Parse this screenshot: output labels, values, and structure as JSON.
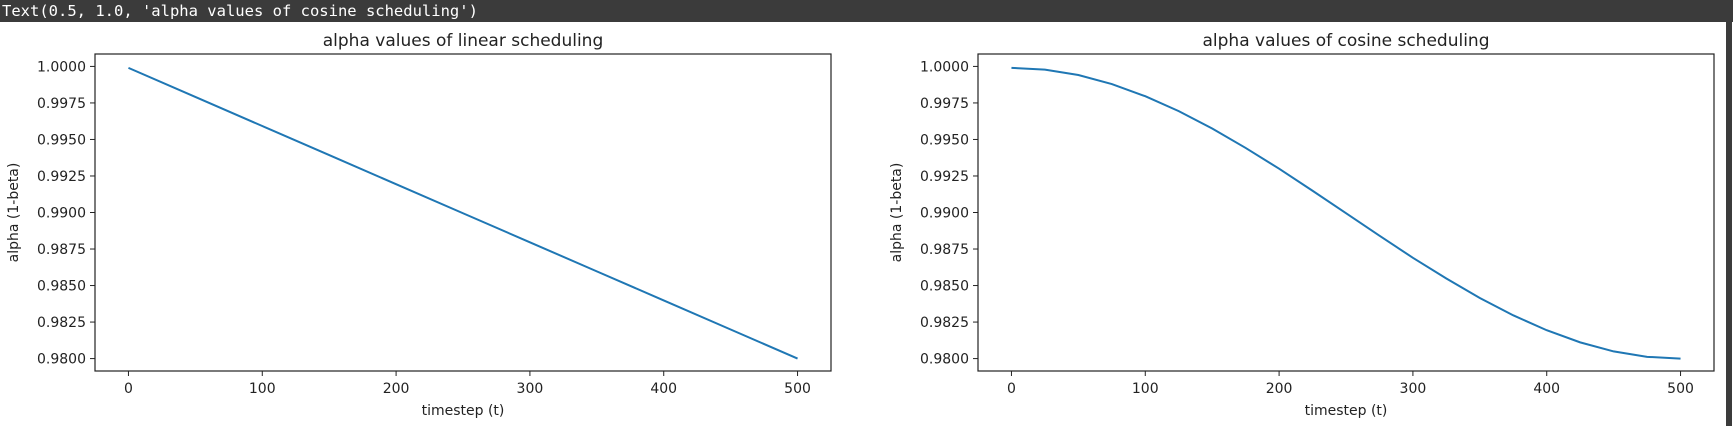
{
  "output_text": "Text(0.5, 1.0, 'alpha values of cosine scheduling')",
  "chart_data": [
    {
      "type": "line",
      "title": "alpha values of linear scheduling",
      "xlabel": "timestep (t)",
      "ylabel": "alpha (1-beta)",
      "xlim": [
        -25,
        525
      ],
      "ylim": [
        0.97915,
        1.00085
      ],
      "xticks": [
        0,
        100,
        200,
        300,
        400,
        500
      ],
      "xtick_labels": [
        "0",
        "100",
        "200",
        "300",
        "400",
        "500"
      ],
      "yticks": [
        0.98,
        0.9825,
        0.985,
        0.9875,
        0.99,
        0.9925,
        0.995,
        0.9975,
        1.0
      ],
      "ytick_labels": [
        "0.9800",
        "0.9825",
        "0.9850",
        "0.9875",
        "0.9900",
        "0.9925",
        "0.9950",
        "0.9975",
        "1.0000"
      ],
      "grid": false,
      "color": "#1f77b4",
      "series": [
        {
          "x": [
            0,
            50,
            100,
            150,
            200,
            250,
            300,
            350,
            400,
            450,
            500
          ],
          "values": [
            0.9999,
            0.99791,
            0.99592,
            0.99393,
            0.99194,
            0.98995,
            0.98796,
            0.98597,
            0.98398,
            0.98199,
            0.98
          ]
        }
      ]
    },
    {
      "type": "line",
      "title": "alpha values of cosine scheduling",
      "xlabel": "timestep (t)",
      "ylabel": "alpha (1-beta)",
      "xlim": [
        -25,
        525
      ],
      "ylim": [
        0.97915,
        1.00085
      ],
      "xticks": [
        0,
        100,
        200,
        300,
        400,
        500
      ],
      "xtick_labels": [
        "0",
        "100",
        "200",
        "300",
        "400",
        "500"
      ],
      "yticks": [
        0.98,
        0.9825,
        0.985,
        0.9875,
        0.99,
        0.9925,
        0.995,
        0.9975,
        1.0
      ],
      "ytick_labels": [
        "0.9800",
        "0.9825",
        "0.9850",
        "0.9875",
        "0.9900",
        "0.9925",
        "0.9950",
        "0.9975",
        "1.0000"
      ],
      "grid": false,
      "color": "#1f77b4",
      "series": [
        {
          "x": [
            0,
            25,
            50,
            75,
            100,
            125,
            150,
            175,
            200,
            225,
            250,
            275,
            300,
            325,
            350,
            375,
            400,
            425,
            450,
            475,
            500
          ],
          "values": [
            0.9999,
            0.99978,
            0.99941,
            0.99879,
            0.99796,
            0.99694,
            0.99575,
            0.99442,
            0.993,
            0.99149,
            0.98995,
            0.98841,
            0.9869,
            0.98548,
            0.98415,
            0.98296,
            0.98194,
            0.98111,
            0.98049,
            0.98012,
            0.98
          ]
        }
      ]
    }
  ]
}
